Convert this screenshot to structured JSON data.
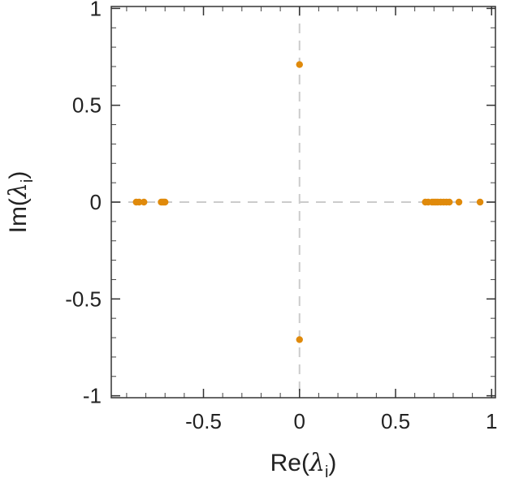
{
  "chart_data": {
    "type": "scatter",
    "title": "",
    "xlabel": {
      "prefix": "Re(",
      "symbol": "λ",
      "subscript": "i",
      "suffix": ")"
    },
    "ylabel": {
      "prefix": "Im(",
      "symbol": "λ",
      "subscript": "i",
      "suffix": ")"
    },
    "xlim": [
      -0.98,
      1.02
    ],
    "ylim": [
      -1.01,
      1.01
    ],
    "xticks": [
      -0.5,
      0,
      0.5,
      1
    ],
    "xtick_labels": [
      "-0.5",
      "0",
      "0.5",
      "1"
    ],
    "yticks": [
      -1,
      -0.5,
      0,
      0.5,
      1
    ],
    "ytick_labels": [
      "-1",
      "-0.5",
      "0",
      "0.5",
      "1"
    ],
    "xminor_step": 0.1,
    "yminor_step": 0.1,
    "grid": false,
    "reference_lines": {
      "x": 0,
      "y": 0,
      "style": "dashed",
      "color": "#cccccc"
    },
    "marker_color": "#e08a0b",
    "points": [
      {
        "x": -0.85,
        "y": 0
      },
      {
        "x": -0.835,
        "y": 0
      },
      {
        "x": -0.81,
        "y": 0
      },
      {
        "x": -0.72,
        "y": 0
      },
      {
        "x": -0.713,
        "y": 0
      },
      {
        "x": -0.706,
        "y": 0
      },
      {
        "x": -0.7,
        "y": 0
      },
      {
        "x": 0,
        "y": 0.71
      },
      {
        "x": 0,
        "y": -0.71
      },
      {
        "x": 0.655,
        "y": 0
      },
      {
        "x": 0.67,
        "y": 0
      },
      {
        "x": 0.69,
        "y": 0
      },
      {
        "x": 0.7,
        "y": 0
      },
      {
        "x": 0.71,
        "y": 0
      },
      {
        "x": 0.72,
        "y": 0
      },
      {
        "x": 0.735,
        "y": 0
      },
      {
        "x": 0.75,
        "y": 0
      },
      {
        "x": 0.765,
        "y": 0
      },
      {
        "x": 0.78,
        "y": 0
      },
      {
        "x": 0.83,
        "y": 0
      },
      {
        "x": 0.94,
        "y": 0
      }
    ]
  }
}
